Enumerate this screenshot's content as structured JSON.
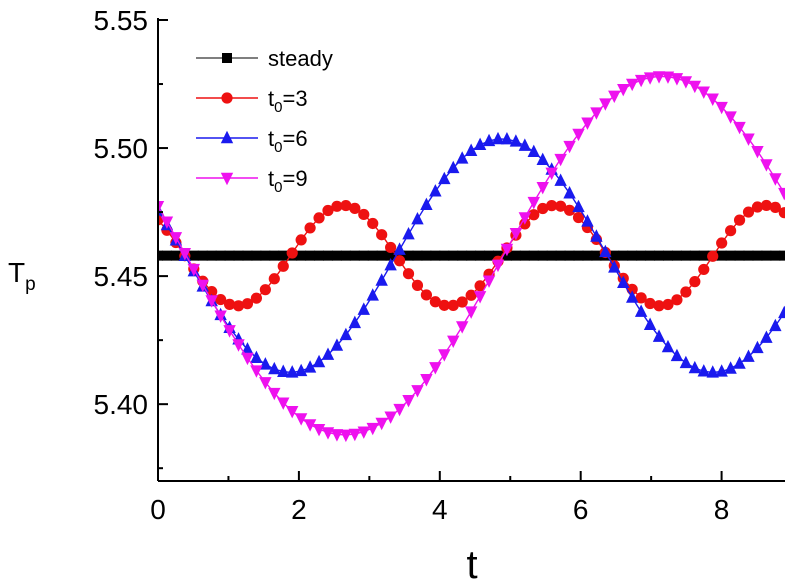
{
  "chart_data": {
    "type": "line",
    "xlabel": "t",
    "ylabel_main": "T",
    "ylabel_sub": "p",
    "xlim": [
      0,
      8.9
    ],
    "ylim": [
      5.37,
      5.55
    ],
    "xticks": [
      0,
      2,
      4,
      6,
      8
    ],
    "xtick_labels": [
      "0",
      "2",
      "4",
      "6",
      "8"
    ],
    "yticks": [
      5.4,
      5.45,
      5.5,
      5.55
    ],
    "ytick_labels": [
      "5.40",
      "5.45",
      "5.50",
      "5.55"
    ],
    "grid": false,
    "legend_position": "top-left",
    "series": [
      {
        "name": "steady",
        "label_main": "steady",
        "label_sub": "",
        "label_tail": "",
        "color": "#000000",
        "line_color": "#555555",
        "marker": "square",
        "x_start": 0,
        "x_step": 0.127,
        "count": 71,
        "mean": 5.458,
        "amplitude": 0,
        "period": 6,
        "phase_time": 0,
        "phase_offset": 0
      },
      {
        "name": "t0=3",
        "label_main": "t",
        "label_sub": "0",
        "label_tail": "=3",
        "color": "#ee1111",
        "line_color": "#ee1111",
        "marker": "circle",
        "x_start": 0,
        "x_step": 0.127,
        "count": 71,
        "mean": 5.458,
        "amplitude": 0.0196,
        "period": 3,
        "phase_time": 1.13,
        "phase_offset": 0.72
      },
      {
        "name": "t0=6",
        "label_main": "t",
        "label_sub": "0",
        "label_tail": "=6",
        "color": "#1a1aee",
        "line_color": "#1a1aee",
        "marker": "triangle-up",
        "x_start": 0,
        "x_step": 0.127,
        "count": 71,
        "mean": 5.458,
        "amplitude": 0.0456,
        "period": 6,
        "phase_time": 1.88,
        "phase_offset": 0.32
      },
      {
        "name": "t0=9",
        "label_main": "t",
        "label_sub": "0",
        "label_tail": "=9",
        "color": "#ee11ee",
        "line_color": "#ee11ee",
        "marker": "triangle-down",
        "x_start": 0,
        "x_step": 0.127,
        "count": 71,
        "mean": 5.458,
        "amplitude": 0.07,
        "period": 9,
        "phase_time": 2.65,
        "phase_offset": 0.2
      }
    ]
  }
}
